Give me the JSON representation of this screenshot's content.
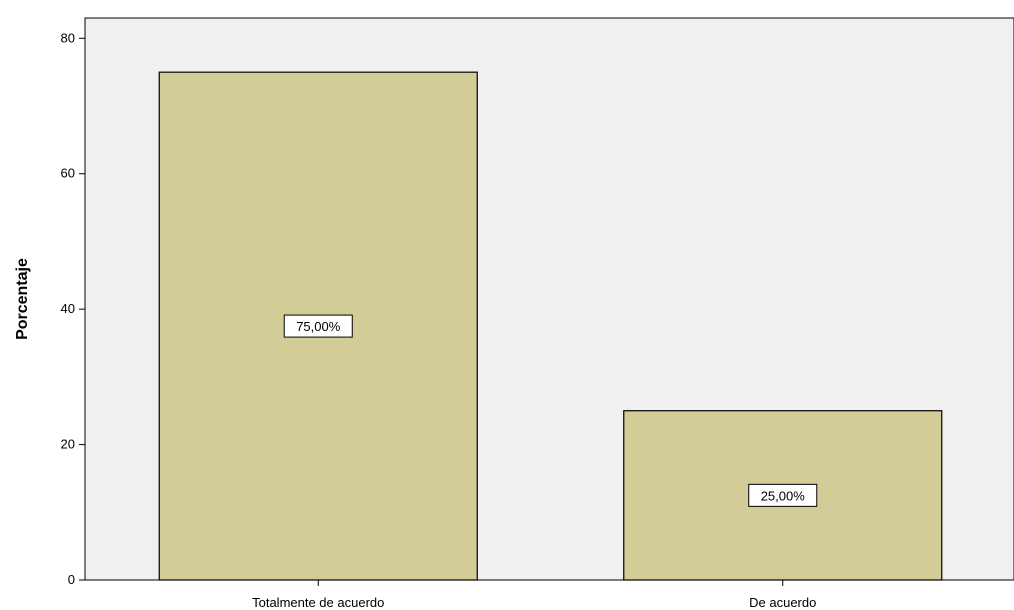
{
  "chart_data": {
    "type": "bar",
    "categories": [
      "Totalmente de acuerdo",
      "De acuerdo"
    ],
    "values": [
      75,
      25
    ],
    "data_labels": [
      "75,00%",
      "25,00%"
    ],
    "ylabel": "Porcentaje",
    "xlabel": "",
    "ylim": [
      0,
      80
    ],
    "yticks": [
      "0",
      "20",
      "40",
      "60",
      "80"
    ],
    "grid": false,
    "bar_color": "#D2CC96",
    "plot_background": "#F0F0F0"
  }
}
